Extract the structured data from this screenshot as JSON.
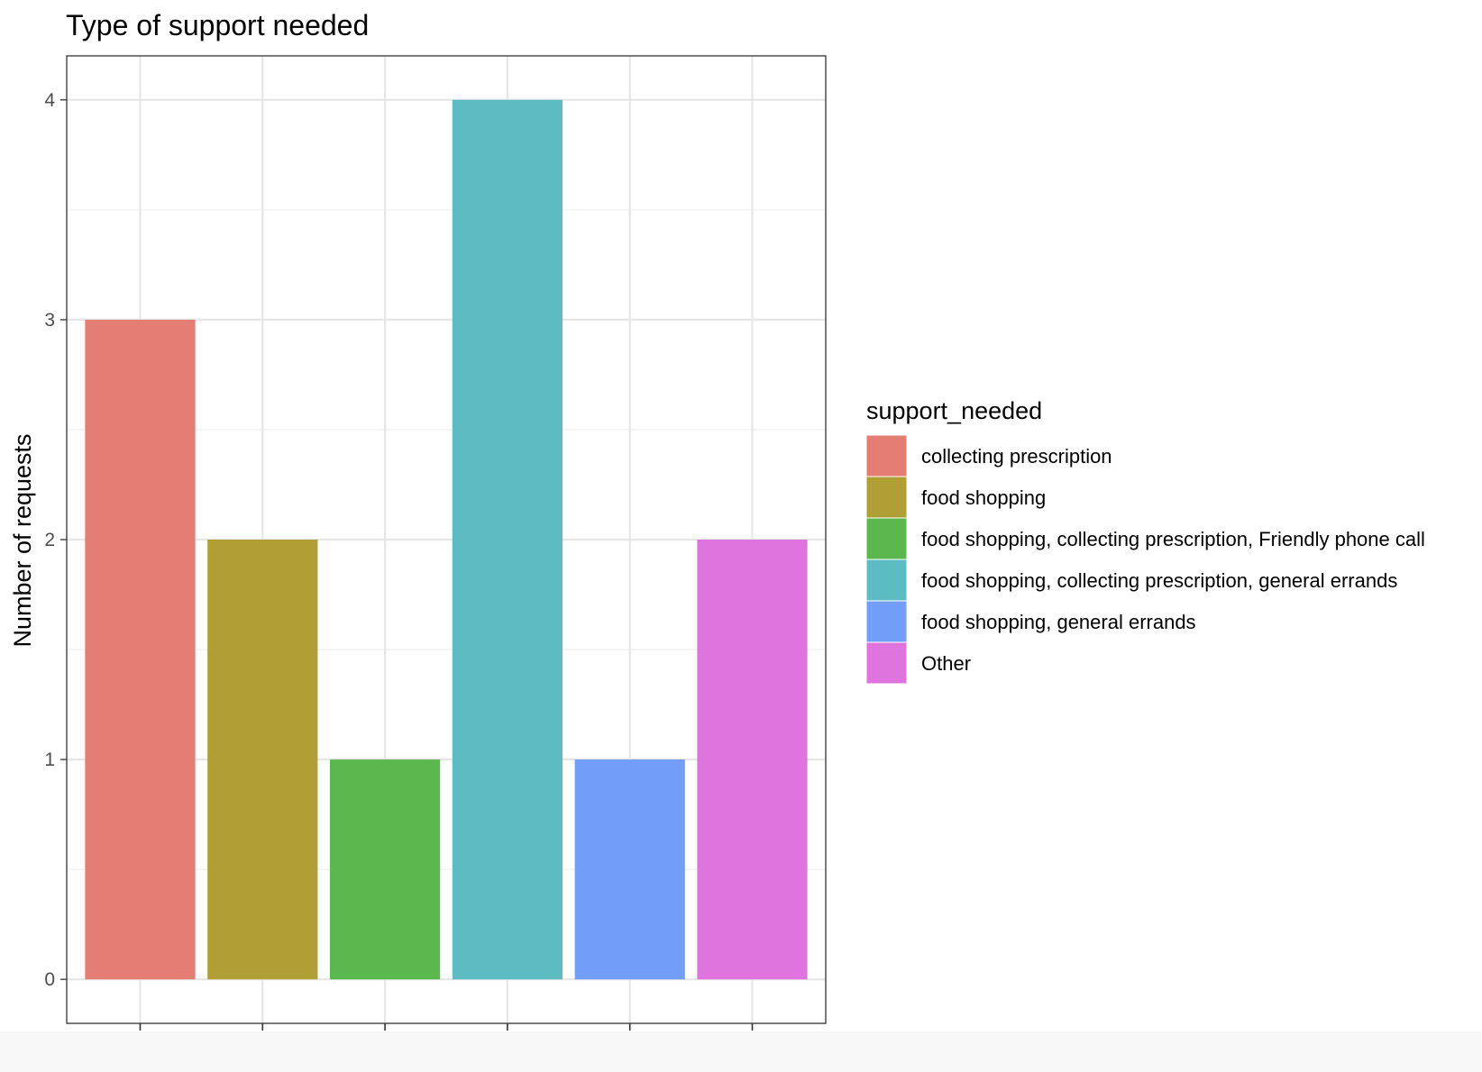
{
  "chart_data": {
    "type": "bar",
    "title": "Type of support needed",
    "xlabel": "",
    "ylabel": "Number of requests",
    "ylim": [
      -0.2,
      4.2
    ],
    "y_ticks": [
      "0",
      "1",
      "2",
      "3",
      "4"
    ],
    "grid": true,
    "legend_title": "support_needed",
    "legend_position": "right",
    "categories": [
      "collecting prescription",
      "food shopping",
      "food shopping, collecting prescription, Friendly phone call",
      "food shopping, collecting prescription, general errands",
      "food shopping, general errands",
      "Other"
    ],
    "values": [
      3,
      2,
      1,
      4,
      1,
      2
    ],
    "colors": [
      "#E47D74",
      "#B09F34",
      "#5BB84F",
      "#5DBCC2",
      "#729EF7",
      "#E074DF"
    ]
  }
}
